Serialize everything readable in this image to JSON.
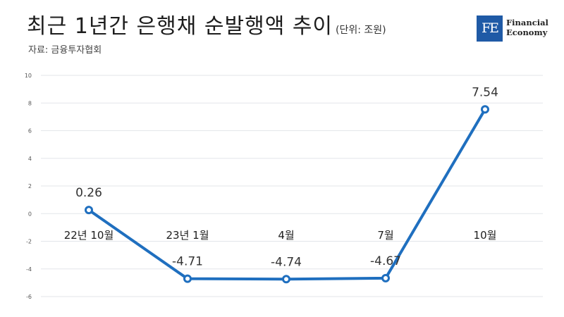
{
  "header": {
    "title": "최근 1년간 은행채 순발행액 추이",
    "unit": "(단위: 조원)",
    "source": "자료: 금융투자협회"
  },
  "logo": {
    "mark": "FE",
    "line1": "Financial",
    "line2": "Economy",
    "color": "#1f5aa6"
  },
  "chart_data": {
    "type": "line",
    "title": "최근 1년간 은행채 순발행액 추이",
    "unit": "(단위: 조원)",
    "categories": [
      "22년 10월",
      "23년 1월",
      "4월",
      "7월",
      "10월"
    ],
    "series": [
      {
        "values": [
          0.26,
          -4.71,
          -4.74,
          -4.67,
          7.54
        ]
      }
    ],
    "data_labels": [
      "0.26",
      "-4.71",
      "-4.74",
      "-4.67",
      "7.54"
    ],
    "ylim": [
      -6,
      10
    ],
    "yticks": [
      10,
      8,
      6,
      4,
      2,
      0,
      -2,
      -4,
      -6
    ],
    "grid": true,
    "line_color": "#1f6fbf"
  }
}
